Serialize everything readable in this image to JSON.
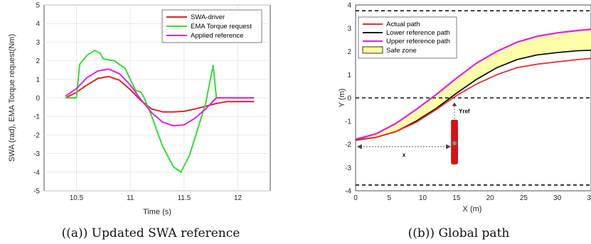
{
  "chart_data": [
    {
      "type": "line",
      "caption": "((a)) Updated SWA reference",
      "xlabel": "Time (s)",
      "ylabel": "SWA (rad), EMA Torque request(Nm)",
      "xlim": [
        10.2,
        12.3
      ],
      "ylim": [
        -5,
        5
      ],
      "xticks": [
        10.5,
        11,
        11.5,
        12
      ],
      "yticks": [
        -5,
        -4,
        -3,
        -2,
        -1,
        0,
        1,
        2,
        3,
        4,
        5
      ],
      "grid": true,
      "legend_position": "top-right",
      "series": [
        {
          "name": "SWA-driver",
          "color": "#d62728",
          "x": [
            10.4,
            10.5,
            10.6,
            10.7,
            10.8,
            10.9,
            11.0,
            11.1,
            11.2,
            11.3,
            11.4,
            11.5,
            11.6,
            11.7,
            11.8,
            11.9,
            12.0,
            12.1,
            12.15
          ],
          "y": [
            0.0,
            0.3,
            0.7,
            1.05,
            1.15,
            0.95,
            0.45,
            -0.15,
            -0.6,
            -0.75,
            -0.75,
            -0.72,
            -0.6,
            -0.45,
            -0.3,
            -0.2,
            -0.2,
            -0.2,
            -0.2
          ]
        },
        {
          "name": "EMA Torque request",
          "color": "#33dd33",
          "x": [
            10.4,
            10.5,
            10.53,
            10.6,
            10.67,
            10.72,
            10.75,
            10.85,
            10.95,
            11.0,
            11.05,
            11.1,
            11.13,
            11.2,
            11.3,
            11.4,
            11.47,
            11.55,
            11.62,
            11.7,
            11.77,
            11.8,
            11.9,
            12.0,
            12.1,
            12.15
          ],
          "y": [
            0.0,
            0.0,
            1.8,
            2.3,
            2.55,
            2.4,
            2.1,
            2.0,
            1.6,
            1.0,
            0.4,
            0.3,
            0.0,
            -1.0,
            -2.6,
            -3.7,
            -4.0,
            -3.1,
            -1.8,
            -0.3,
            1.75,
            0.0,
            0.0,
            0.0,
            0.0,
            0.0
          ]
        },
        {
          "name": "Applied reference",
          "color": "#dd22dd",
          "x": [
            10.4,
            10.5,
            10.6,
            10.7,
            10.8,
            10.9,
            11.0,
            11.1,
            11.2,
            11.3,
            11.4,
            11.5,
            11.6,
            11.7,
            11.8,
            11.9,
            12.0,
            12.1,
            12.15
          ],
          "y": [
            0.1,
            0.5,
            1.1,
            1.45,
            1.55,
            1.3,
            0.7,
            -0.1,
            -0.8,
            -1.3,
            -1.5,
            -1.45,
            -1.1,
            -0.6,
            0.0,
            0.0,
            0.0,
            0.0,
            0.0
          ]
        }
      ]
    },
    {
      "type": "line",
      "caption": "((b)) Global path",
      "xlabel": "X (m)",
      "ylabel": "Y (m)",
      "xlim": [
        0,
        35
      ],
      "ylim": [
        -4,
        4
      ],
      "xticks": [
        0,
        5,
        10,
        15,
        20,
        25,
        30,
        35
      ],
      "yticks": [
        -4,
        -3,
        -2,
        -1,
        0,
        1,
        2,
        3,
        4
      ],
      "grid": false,
      "legend_position": "top-left",
      "dashed_lines_y": [
        3.75,
        0,
        -3.75
      ],
      "annotations": [
        "Yref",
        "x"
      ],
      "series": [
        {
          "name": "Actual path",
          "color": "#e03030",
          "x": [
            0,
            3,
            6,
            9,
            12,
            15,
            18,
            21,
            24,
            27,
            30,
            33,
            35
          ],
          "y": [
            -1.8,
            -1.7,
            -1.45,
            -1.05,
            -0.5,
            0.1,
            0.6,
            1.0,
            1.3,
            1.45,
            1.55,
            1.65,
            1.7
          ]
        },
        {
          "name": "Lower reference path",
          "color": "#111111",
          "x": [
            0,
            3,
            6,
            9,
            12,
            15,
            18,
            21,
            24,
            27,
            30,
            33,
            35
          ],
          "y": [
            -1.82,
            -1.7,
            -1.45,
            -1.0,
            -0.45,
            0.2,
            0.8,
            1.3,
            1.65,
            1.85,
            1.95,
            2.03,
            2.05
          ]
        },
        {
          "name": "Upper reference  path",
          "color": "#e020e0",
          "x": [
            0,
            3,
            6,
            9,
            12,
            15,
            18,
            21,
            24,
            27,
            30,
            33,
            35
          ],
          "y": [
            -1.78,
            -1.55,
            -1.1,
            -0.5,
            0.15,
            0.85,
            1.5,
            2.0,
            2.4,
            2.65,
            2.8,
            2.9,
            2.95
          ]
        },
        {
          "name": "Safe zone",
          "color": "#ffff99"
        }
      ],
      "colors": {
        "vehicle": "#dd1111",
        "arrow": "#444444",
        "safe_zone_fill": "#ffffaa"
      }
    }
  ]
}
